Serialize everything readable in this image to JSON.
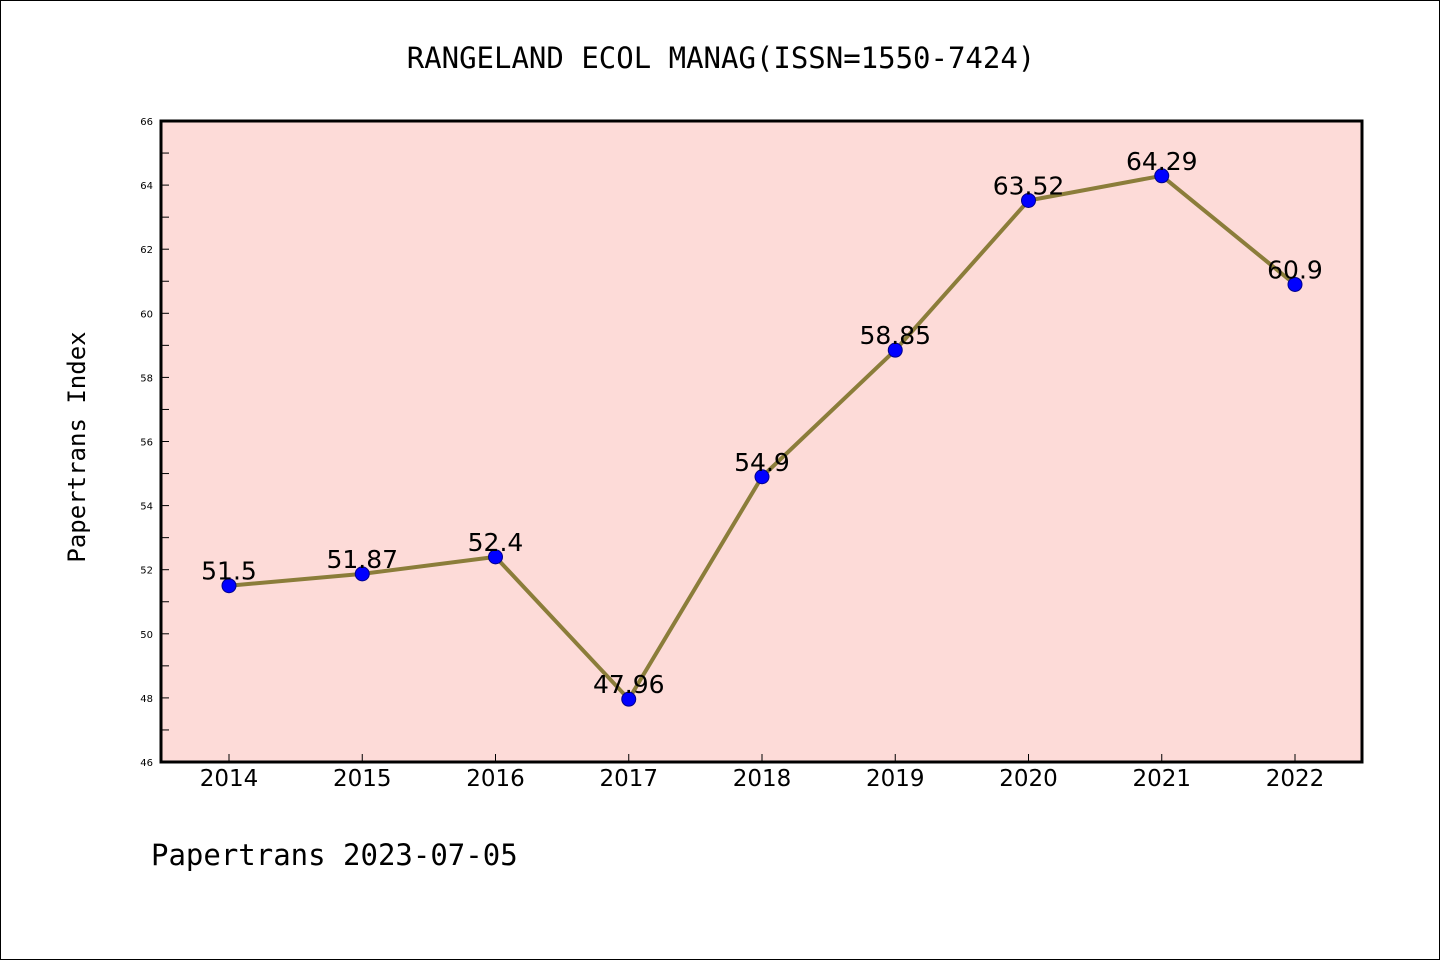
{
  "chart_data": {
    "type": "line",
    "title": "RANGELAND ECOL MANAG(ISSN=1550-7424)",
    "xlabel": "",
    "ylabel": "Papertrans Index",
    "categories": [
      "2014",
      "2015",
      "2016",
      "2017",
      "2018",
      "2019",
      "2020",
      "2021",
      "2022"
    ],
    "series": [
      {
        "values": [
          51.5,
          51.87,
          52.4,
          47.96,
          54.9,
          58.85,
          63.52,
          64.29,
          60.9
        ],
        "labels": [
          "51.5",
          "51.87",
          "52.4",
          "47.96",
          "54.9",
          "58.85",
          "63.52",
          "64.29",
          "60.9"
        ]
      }
    ],
    "ylim": [
      46,
      66
    ],
    "yticks": [
      "46",
      "48",
      "50",
      "52",
      "54",
      "56",
      "58",
      "60",
      "62",
      "64",
      "66"
    ],
    "grid": false,
    "legend": "none",
    "colors": {
      "plot_background": "#fddbd8",
      "line": "#8b7d3a",
      "marker": "#0000ff"
    }
  },
  "footer": "Papertrans 2023-07-05"
}
